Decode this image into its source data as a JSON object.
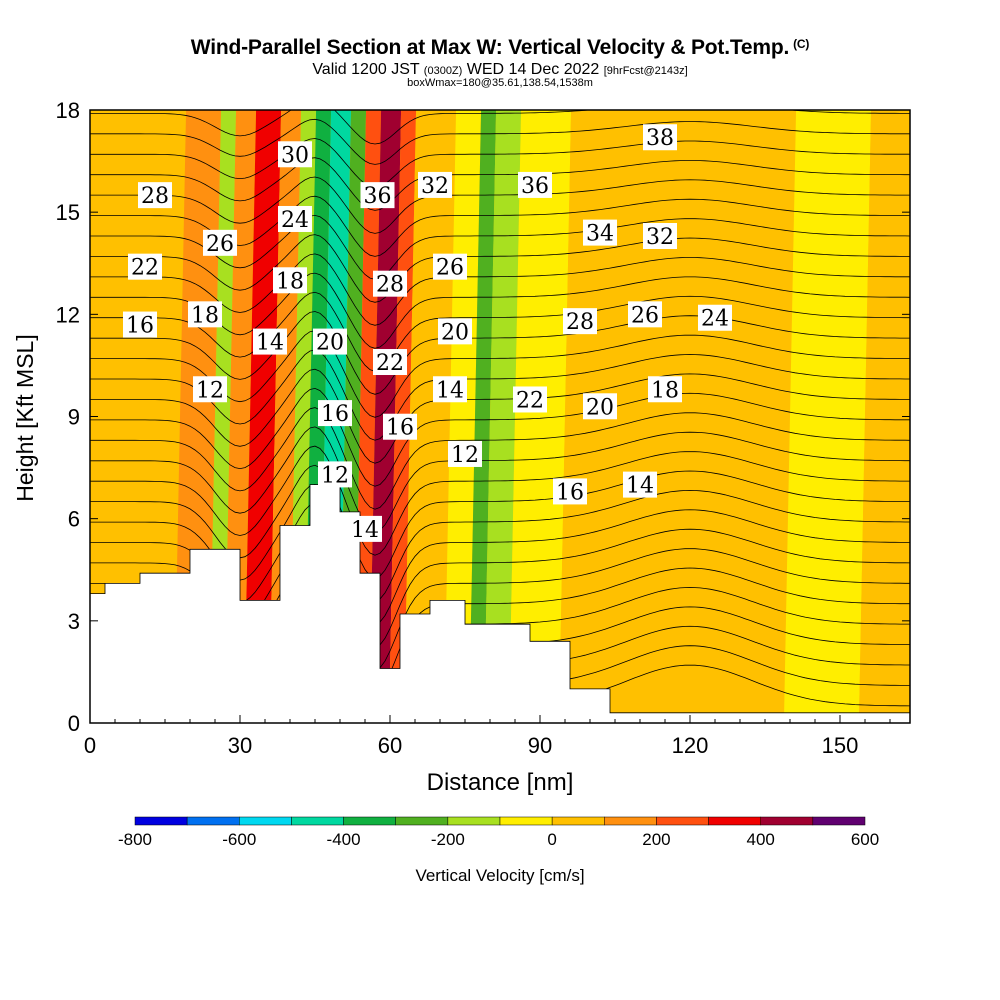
{
  "title": {
    "main": "Wind-Parallel Section at Max W: Vertical Velocity & Pot.Temp.",
    "copyright": "(C)",
    "valid_a": "Valid 1200 JST",
    "valid_utc": "(0300Z)",
    "valid_b": "WED 14 Dec 2022",
    "forecast": "[9hrFcst@2143z]",
    "box": "boxWmax=180@35.61,138.54,1538m"
  },
  "chart_data": {
    "type": "heatmap",
    "xlabel": "Distance [nm]",
    "ylabel": "Height [Kft MSL]",
    "xlim": [
      0,
      164
    ],
    "ylim": [
      0,
      18
    ],
    "x_ticks": [
      0,
      30,
      60,
      90,
      120,
      150
    ],
    "y_ticks": [
      0,
      3,
      6,
      9,
      12,
      15,
      18
    ],
    "colorbar": {
      "label": "Vertical Velocity [cm/s]",
      "tick_labels": [
        "-800",
        "-600",
        "-400",
        "-200",
        "0",
        "200",
        "400",
        "600"
      ],
      "levels": [
        -800,
        -700,
        -600,
        -500,
        -400,
        -300,
        -200,
        -100,
        0,
        100,
        200,
        300,
        400,
        500,
        600
      ],
      "colors": [
        "#0000e0",
        "#0070f0",
        "#00d8f0",
        "#00d8a0",
        "#10b040",
        "#50b020",
        "#a8e020",
        "#ffee00",
        "#ffc000",
        "#ff9010",
        "#ff5010",
        "#f00000",
        "#a00030",
        "#600070"
      ]
    },
    "vertical_velocity_columns": [
      {
        "x_range": [
          0,
          18
        ],
        "value": 50
      },
      {
        "x_range": [
          18,
          25
        ],
        "value": 120
      },
      {
        "x_range": [
          25,
          28
        ],
        "value": -150
      },
      {
        "x_range": [
          28,
          32
        ],
        "value": 150
      },
      {
        "x_range": [
          32,
          37
        ],
        "value": 350
      },
      {
        "x_range": [
          37,
          41
        ],
        "value": 150
      },
      {
        "x_range": [
          41,
          44
        ],
        "value": -150
      },
      {
        "x_range": [
          44,
          47
        ],
        "value": -350
      },
      {
        "x_range": [
          47,
          51
        ],
        "value": -450
      },
      {
        "x_range": [
          51,
          54
        ],
        "value": -250
      },
      {
        "x_range": [
          54,
          57
        ],
        "value": 250
      },
      {
        "x_range": [
          57,
          61
        ],
        "value": 420
      },
      {
        "x_range": [
          61,
          64
        ],
        "value": 250
      },
      {
        "x_range": [
          64,
          72
        ],
        "value": 60
      },
      {
        "x_range": [
          72,
          77
        ],
        "value": -50
      },
      {
        "x_range": [
          77,
          80
        ],
        "value": -250
      },
      {
        "x_range": [
          80,
          85
        ],
        "value": -120
      },
      {
        "x_range": [
          85,
          95
        ],
        "value": -40
      },
      {
        "x_range": [
          95,
          140
        ],
        "value": 60
      },
      {
        "x_range": [
          140,
          155
        ],
        "value": -30
      },
      {
        "x_range": [
          155,
          164
        ],
        "value": 60
      }
    ],
    "terrain_profile": [
      [
        0,
        3.8
      ],
      [
        3,
        4.1
      ],
      [
        10,
        4.4
      ],
      [
        20,
        5.1
      ],
      [
        30,
        3.6
      ],
      [
        38,
        5.8
      ],
      [
        44,
        7
      ],
      [
        50,
        6.2
      ],
      [
        54,
        4.4
      ],
      [
        58,
        1.6
      ],
      [
        62,
        3.2
      ],
      [
        68,
        3.6
      ],
      [
        75,
        2.9
      ],
      [
        88,
        2.4
      ],
      [
        96,
        1.0
      ],
      [
        104,
        0.3
      ],
      [
        164,
        0.3
      ]
    ],
    "potential_temperature_labels": [
      {
        "value": "28",
        "x": 13,
        "y": 15.5
      },
      {
        "value": "22",
        "x": 11,
        "y": 13.4
      },
      {
        "value": "16",
        "x": 10,
        "y": 11.7
      },
      {
        "value": "26",
        "x": 26,
        "y": 14.1
      },
      {
        "value": "18",
        "x": 23,
        "y": 12.0
      },
      {
        "value": "12",
        "x": 24,
        "y": 9.8
      },
      {
        "value": "30",
        "x": 41,
        "y": 16.7
      },
      {
        "value": "24",
        "x": 41,
        "y": 14.8
      },
      {
        "value": "18",
        "x": 40,
        "y": 13.0
      },
      {
        "value": "14",
        "x": 36,
        "y": 11.2
      },
      {
        "value": "20",
        "x": 48,
        "y": 11.2
      },
      {
        "value": "16",
        "x": 49,
        "y": 9.1
      },
      {
        "value": "12",
        "x": 49,
        "y": 7.3
      },
      {
        "value": "14",
        "x": 55,
        "y": 5.7
      },
      {
        "value": "36",
        "x": 57.5,
        "y": 15.5
      },
      {
        "value": "32",
        "x": 69,
        "y": 15.8
      },
      {
        "value": "28",
        "x": 60,
        "y": 12.9
      },
      {
        "value": "22",
        "x": 60,
        "y": 10.6
      },
      {
        "value": "16",
        "x": 62,
        "y": 8.7
      },
      {
        "value": "26",
        "x": 72,
        "y": 13.4
      },
      {
        "value": "20",
        "x": 73,
        "y": 11.5
      },
      {
        "value": "14",
        "x": 72,
        "y": 9.8
      },
      {
        "value": "12",
        "x": 75,
        "y": 7.9
      },
      {
        "value": "36",
        "x": 89,
        "y": 15.8
      },
      {
        "value": "22",
        "x": 88,
        "y": 9.5
      },
      {
        "value": "16",
        "x": 96,
        "y": 6.8
      },
      {
        "value": "34",
        "x": 102,
        "y": 14.4
      },
      {
        "value": "28",
        "x": 98,
        "y": 11.8
      },
      {
        "value": "20",
        "x": 102,
        "y": 9.3
      },
      {
        "value": "38",
        "x": 114,
        "y": 17.2
      },
      {
        "value": "32",
        "x": 114,
        "y": 14.3
      },
      {
        "value": "26",
        "x": 111,
        "y": 12.0
      },
      {
        "value": "18",
        "x": 115,
        "y": 9.8
      },
      {
        "value": "14",
        "x": 110,
        "y": 7.0
      },
      {
        "value": "24",
        "x": 125,
        "y": 11.9
      }
    ]
  }
}
